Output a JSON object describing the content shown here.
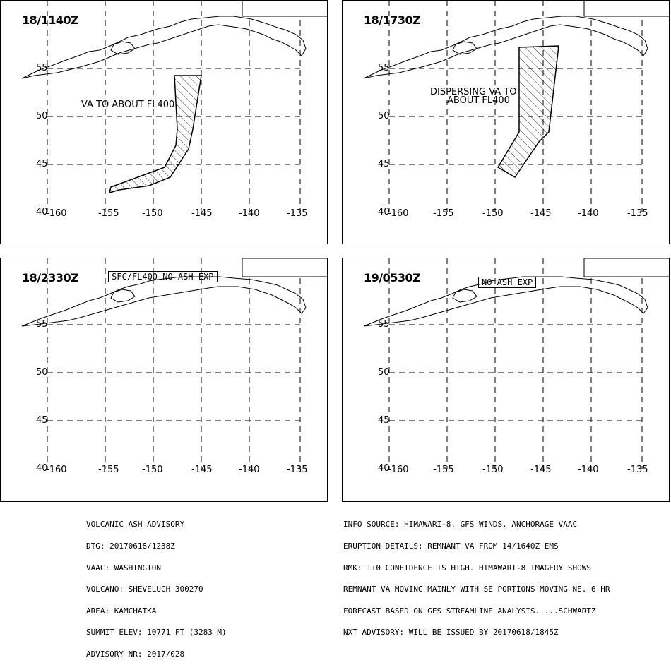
{
  "panels": [
    {
      "time": "18/1140Z",
      "label_lines": [
        "VA TO ABOUT FL400"
      ],
      "boxed": ""
    },
    {
      "time": "18/1730Z",
      "label_lines": [
        "DISPERSING VA TO",
        "ABOUT FL400"
      ],
      "boxed": ""
    },
    {
      "time": "18/2330Z",
      "label_lines": [],
      "boxed": "SFC/FL400 NO ASH EXP"
    },
    {
      "time": "19/0530Z",
      "label_lines": [],
      "boxed": "NO ASH EXP"
    }
  ],
  "lat_labels": [
    "55",
    "50",
    "45",
    "40"
  ],
  "lon_labels": [
    "-160",
    "-155",
    "-150",
    "-145",
    "-140",
    "-135"
  ],
  "advisory_left": [
    "VOLCANIC ASH ADVISORY",
    "DTG: 20170618/1238Z",
    "VAAC: WASHINGTON",
    "VOLCANO: SHEVELUCH 300270",
    "AREA: KAMCHATKA",
    "SUMMIT ELEV: 10771 FT (3283 M)",
    "ADVISORY NR: 2017/028"
  ],
  "advisory_right": [
    "INFO SOURCE: HIMAWARI-8. GFS WINDS. ANCHORAGE VAAC",
    "ERUPTION DETAILS: REMNANT VA FROM 14/1640Z EMS",
    "RMK: T+0 CONFIDENCE IS HIGH. HIMAWARI-8 IMAGERY SHOWS",
    "REMNANT VA MOVING MAINLY WITH SE PORTIONS MOVING NE. 6 HR",
    "FORECAST BASED ON GFS STREAMLINE ANALYSIS. ...SCHWARTZ",
    "NXT ADVISORY: WILL BE ISSUED BY 20170618/1845Z"
  ]
}
